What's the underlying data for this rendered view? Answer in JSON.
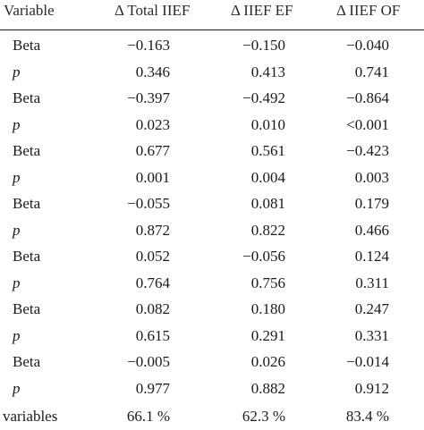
{
  "header": [
    "Variable",
    "Δ Total IIEF",
    "Δ IIEF EF",
    "Δ IIEF OF"
  ],
  "rows": [
    [
      "Beta",
      "−0.163",
      "−0.150",
      "−0.040"
    ],
    [
      "p",
      "0.346",
      "0.413",
      "0.741"
    ],
    [
      "Beta",
      "−0.397",
      "−0.492",
      "−0.864"
    ],
    [
      "p",
      "0.023",
      "0.010",
      "<0.001"
    ],
    [
      "Beta",
      "0.677",
      "0.561",
      "−0.423"
    ],
    [
      "p",
      "0.001",
      "0.004",
      "0.003"
    ],
    [
      "Beta",
      "−0.055",
      "0.081",
      "0.179"
    ],
    [
      "p",
      "0.872",
      "0.822",
      "0.466"
    ],
    [
      "Beta",
      "0.052",
      "−0.056",
      "0.124"
    ],
    [
      "p",
      "0.764",
      "0.756",
      "0.311"
    ],
    [
      "Beta",
      "0.082",
      "0.180",
      "0.247"
    ],
    [
      "p",
      "0.615",
      "0.291",
      "0.331"
    ],
    [
      "Beta",
      "−0.005",
      "0.026",
      "−0.014"
    ],
    [
      "p",
      "0.977",
      "0.882",
      "0.912"
    ]
  ],
  "footer": [
    ": variables",
    "66.1 %",
    "62.3 %",
    "83.4 %"
  ]
}
